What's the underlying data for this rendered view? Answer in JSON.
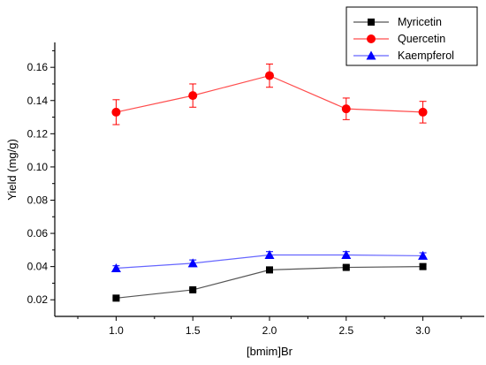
{
  "chart_data": {
    "type": "line",
    "xlabel": "[bmim]Br",
    "ylabel": "Yield (mg/g)",
    "xlim": [
      0.6,
      3.4
    ],
    "ylim": [
      0.01,
      0.175
    ],
    "x_ticks": [
      1.0,
      1.5,
      2.0,
      2.5,
      3.0
    ],
    "x_tick_labels": [
      "1.0",
      "1.5",
      "2.0",
      "2.5",
      "3.0"
    ],
    "y_ticks": [
      0.02,
      0.04,
      0.06,
      0.08,
      0.1,
      0.12,
      0.14,
      0.16
    ],
    "y_tick_labels": [
      "0.02",
      "0.04",
      "0.06",
      "0.08",
      "0.10",
      "0.12",
      "0.14",
      "0.16"
    ],
    "grid": false,
    "legend_position": "top-right",
    "series": [
      {
        "name": "Myricetin",
        "color": "#555555",
        "marker_color": "#000000",
        "marker": "square",
        "x": [
          1.0,
          1.5,
          2.0,
          2.5,
          3.0
        ],
        "y": [
          0.021,
          0.026,
          0.038,
          0.0395,
          0.04
        ],
        "error": [
          0.0005,
          0.0008,
          0.0012,
          0.001,
          0.0015
        ]
      },
      {
        "name": "Quercetin",
        "color": "#ff4d4d",
        "marker_color": "#ff0000",
        "marker": "circle",
        "x": [
          1.0,
          1.5,
          2.0,
          2.5,
          3.0
        ],
        "y": [
          0.133,
          0.143,
          0.155,
          0.135,
          0.133
        ],
        "error": [
          0.0075,
          0.007,
          0.007,
          0.0065,
          0.0065
        ]
      },
      {
        "name": "Kaempferol",
        "color": "#6666ff",
        "marker_color": "#0000ff",
        "marker": "triangle",
        "x": [
          1.0,
          1.5,
          2.0,
          2.5,
          3.0
        ],
        "y": [
          0.039,
          0.042,
          0.047,
          0.047,
          0.0465
        ],
        "error": [
          0.0015,
          0.002,
          0.002,
          0.002,
          0.0018
        ]
      }
    ]
  }
}
